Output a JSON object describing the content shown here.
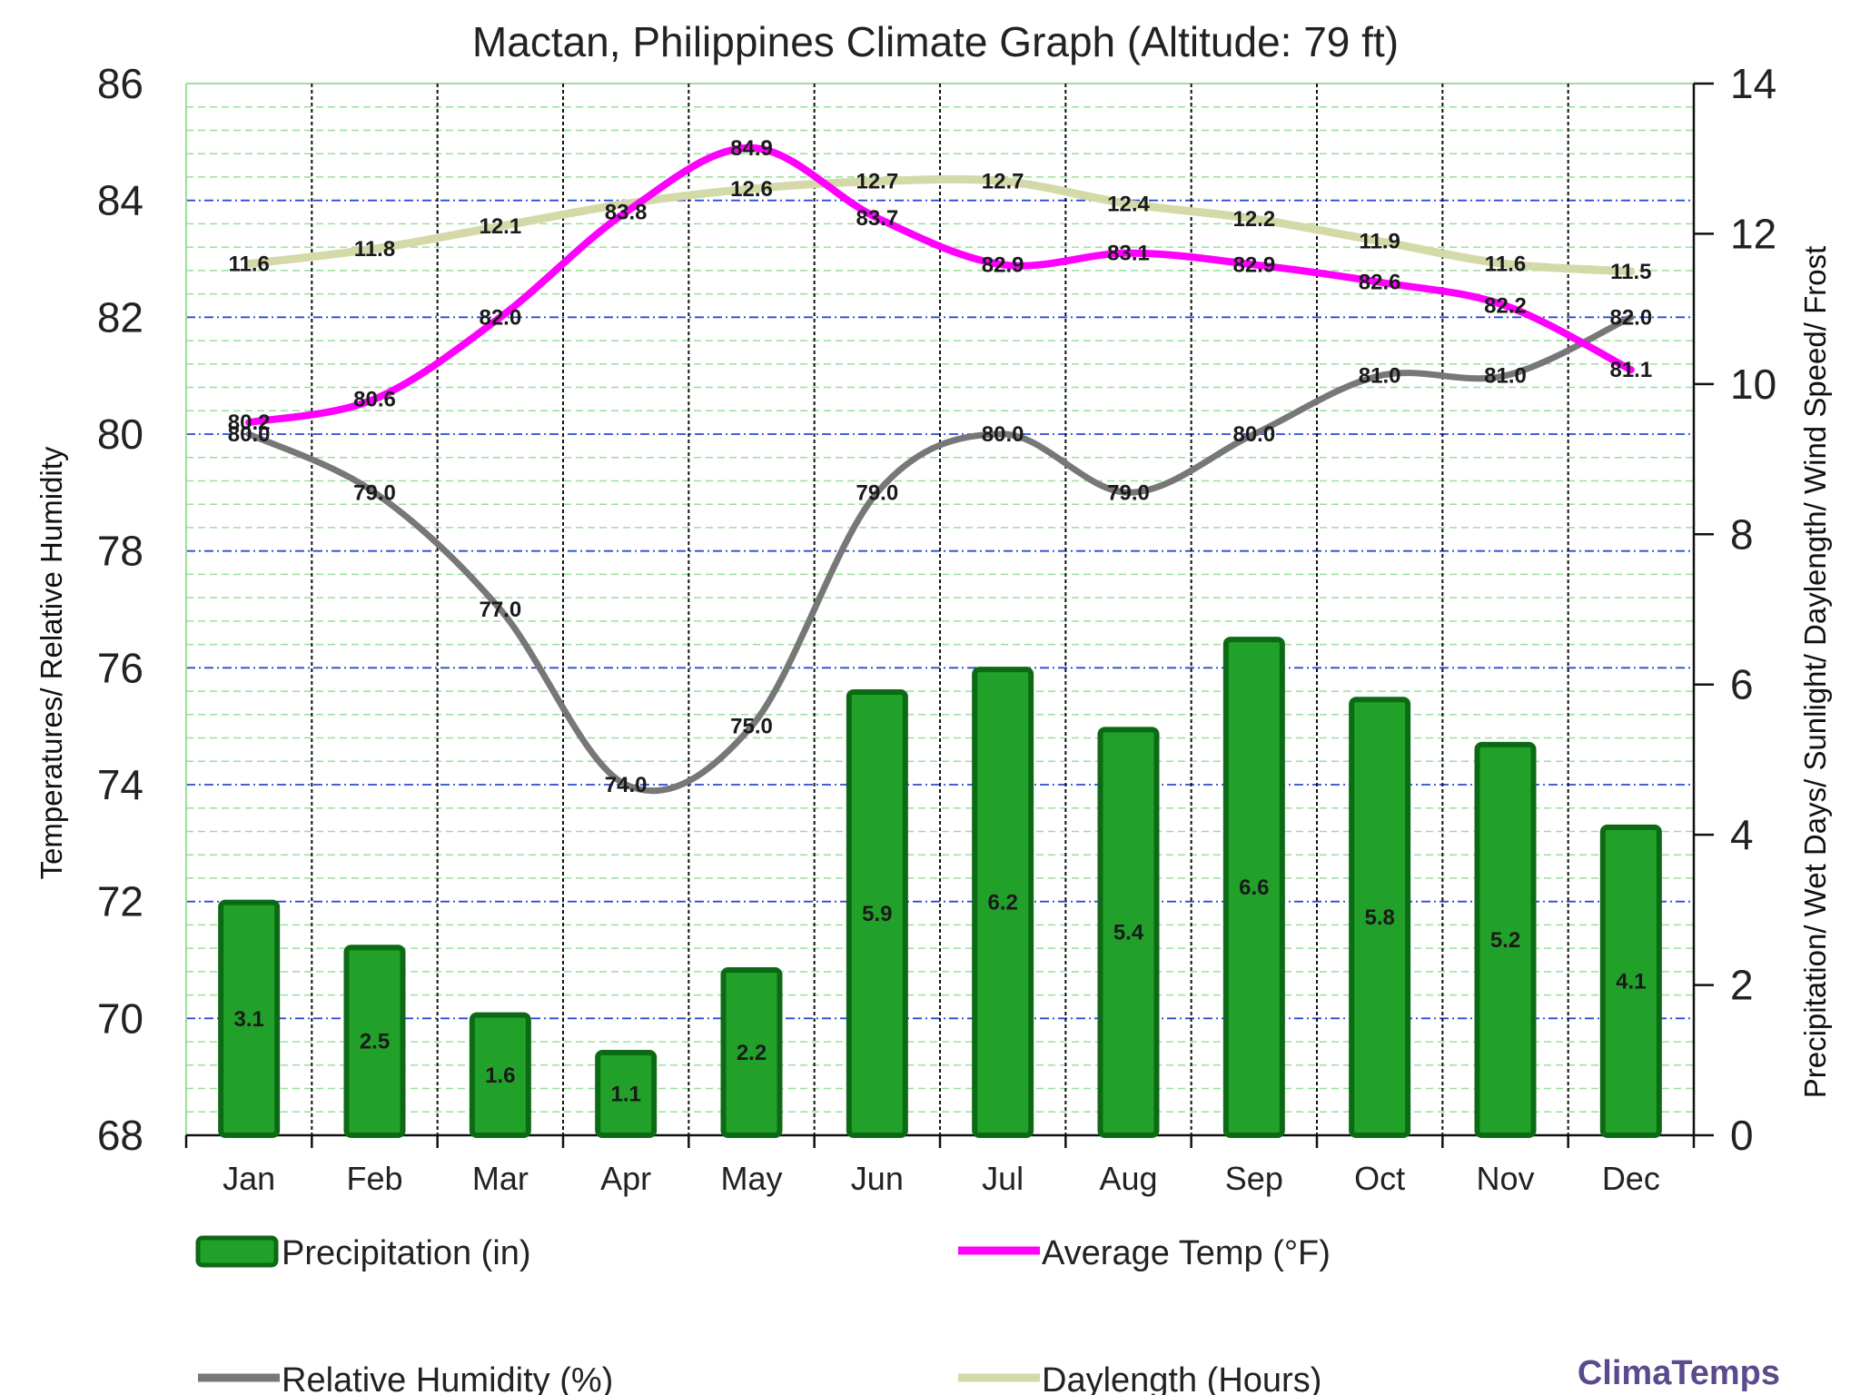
{
  "chart_data": {
    "type": "bar+line",
    "title": "Mactan, Philippines Climate  Graph (Altitude: 79 ft)",
    "categories": [
      "Jan",
      "Feb",
      "Mar",
      "Apr",
      "May",
      "Jun",
      "Jul",
      "Aug",
      "Sep",
      "Oct",
      "Nov",
      "Dec"
    ],
    "left_axis": {
      "label": "Temperatures/ Relative Humidity",
      "range": [
        68,
        86
      ],
      "ticks": [
        "68",
        "70",
        "72",
        "74",
        "76",
        "78",
        "80",
        "82",
        "84",
        "86"
      ]
    },
    "right_axis": {
      "label": "Precipitation/ Wet Days/ Sunlight/ Daylength/ Wind Speed/ Frost",
      "range": [
        0,
        14
      ],
      "ticks": [
        "0",
        "2",
        "4",
        "6",
        "8",
        "10",
        "12",
        "14"
      ]
    },
    "series": [
      {
        "name": "Precipitation (in)",
        "type": "bar",
        "axis": "right",
        "color": "#22a12a",
        "values": [
          3.1,
          2.5,
          1.6,
          1.1,
          2.2,
          5.9,
          6.2,
          5.4,
          6.6,
          5.8,
          5.2,
          4.1
        ],
        "labels": [
          "3.1",
          "2.5",
          "1.6",
          "1.1",
          "2.2",
          "5.9",
          "6.2",
          "5.4",
          "6.6",
          "5.8",
          "5.2",
          "4.1"
        ]
      },
      {
        "name": "Average Temp (°F)",
        "type": "line",
        "axis": "left",
        "color": "#ff00ff",
        "values": [
          80.2,
          80.6,
          82.0,
          83.8,
          84.9,
          83.7,
          82.9,
          83.1,
          82.9,
          82.6,
          82.2,
          81.1
        ],
        "labels": [
          "80.2",
          "80.6",
          "82.0",
          "83.8",
          "84.9",
          "83.7",
          "82.9",
          "83.1",
          "82.9",
          "82.6",
          "82.2",
          "81.1"
        ]
      },
      {
        "name": "Relative Humidity (%)",
        "type": "line",
        "axis": "left",
        "color": "#777777",
        "values": [
          80.0,
          79.0,
          77.0,
          74.0,
          75.0,
          79.0,
          80.0,
          79.0,
          80.0,
          81.0,
          81.0,
          82.0
        ],
        "labels": [
          "80.0",
          "79.0",
          "77.0",
          "74.0",
          "75.0",
          "79.0",
          "80.0",
          "79.0",
          "80.0",
          "81.0",
          "81.0",
          "82.0"
        ]
      },
      {
        "name": "Daylength (Hours)",
        "type": "line",
        "axis": "right",
        "color": "#d4d9a8",
        "values": [
          11.6,
          11.8,
          12.1,
          12.4,
          12.6,
          12.7,
          12.7,
          12.4,
          12.2,
          11.9,
          11.6,
          11.5
        ],
        "labels": [
          "11.6",
          "11.8",
          "12.1",
          "",
          "12.6",
          "12.7",
          "12.7",
          "12.4",
          "12.2",
          "11.9",
          "11.6",
          "11.5"
        ]
      }
    ],
    "legend_position": "bottom",
    "brand": "ClimaTemps",
    "colors": {
      "precip_fill": "#22a12a",
      "precip_edge": "#0d6a14",
      "temp": "#ff00ff",
      "humidity": "#777777",
      "daylength": "#d4d9a8",
      "major_grid": "#2a4bd6",
      "minor_grid": "#9adf9a"
    }
  }
}
